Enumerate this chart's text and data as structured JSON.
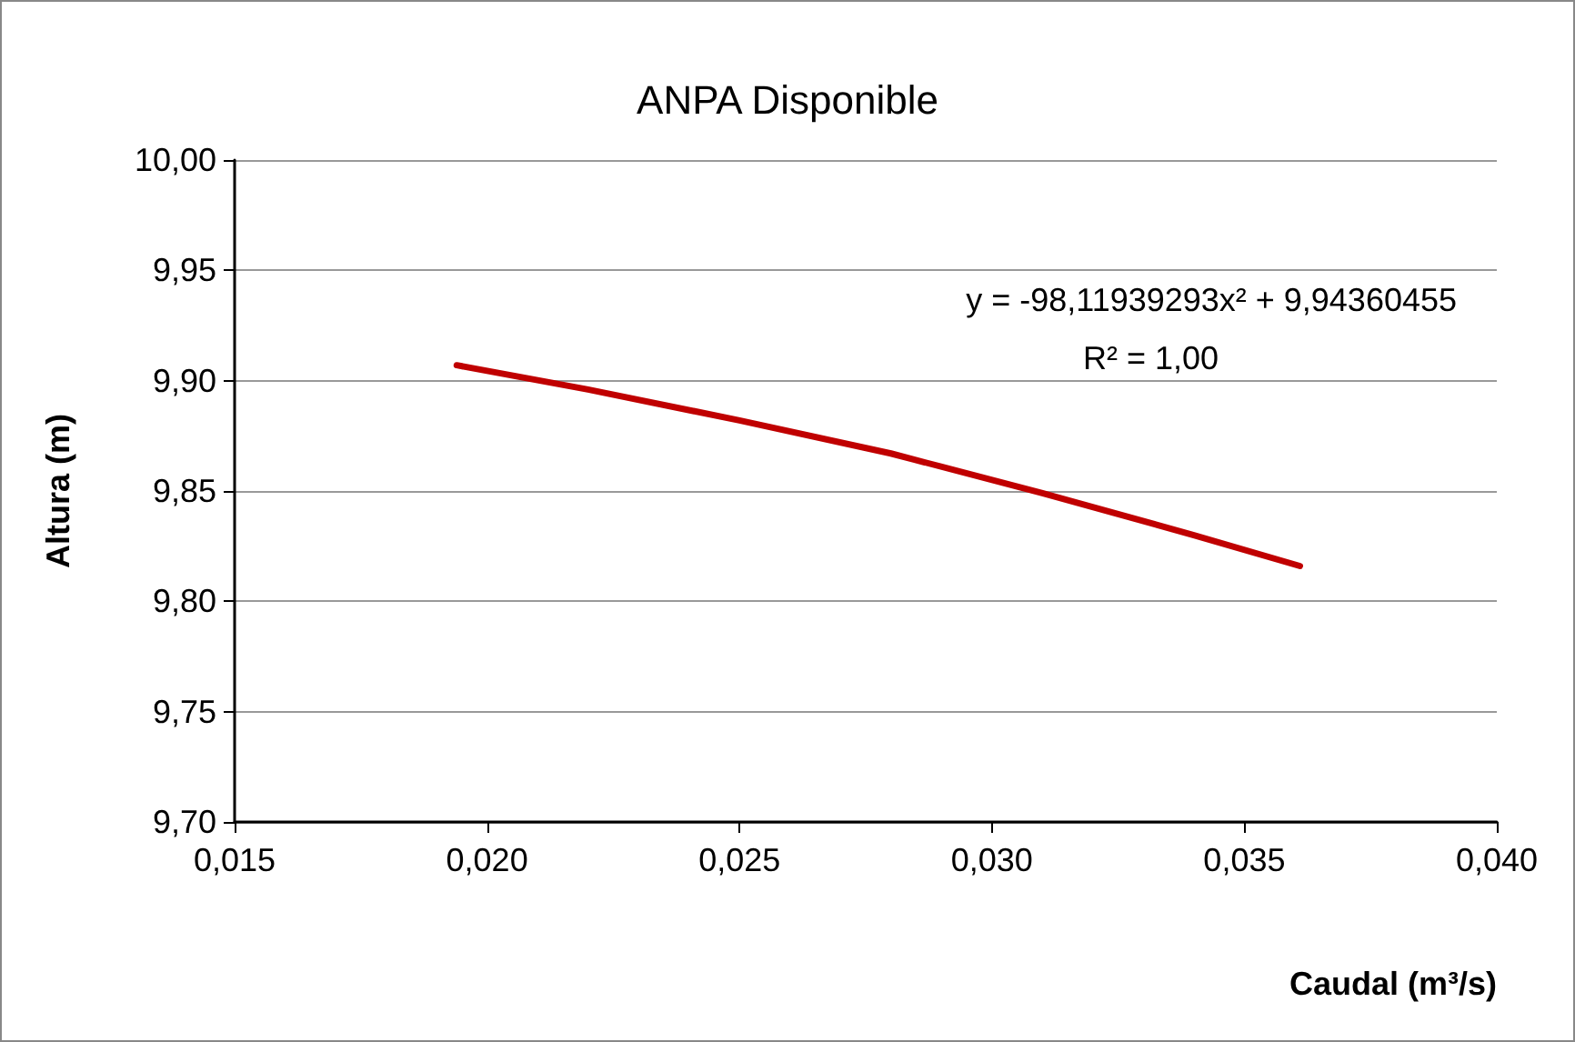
{
  "chart_data": {
    "type": "line",
    "title": "ANPA Disponible",
    "xlabel": "Caudal (m³/s)",
    "ylabel": "Altura (m)",
    "annotations": [
      "y = -98,11939293x² + 9,94360455",
      "R² = 1,00"
    ],
    "series": [
      {
        "color": "#c00000",
        "x": [
          0.0194,
          0.022,
          0.025,
          0.028,
          0.031,
          0.034,
          0.0361
        ],
        "values": [
          9.907,
          9.896,
          9.882,
          9.867,
          9.849,
          9.83,
          9.816
        ]
      }
    ],
    "xlim": [
      0.015,
      0.04
    ],
    "xticks": [
      {
        "value": 0.015,
        "label": "0,015"
      },
      {
        "value": 0.02,
        "label": "0,020"
      },
      {
        "value": 0.025,
        "label": "0,025"
      },
      {
        "value": 0.03,
        "label": "0,030"
      },
      {
        "value": 0.035,
        "label": "0,035"
      },
      {
        "value": 0.04,
        "label": "0,040"
      }
    ],
    "ylim": [
      9.7,
      10.0
    ],
    "yticks": [
      {
        "value": 9.7,
        "label": "9,70"
      },
      {
        "value": 9.75,
        "label": "9,75"
      },
      {
        "value": 9.8,
        "label": "9,80"
      },
      {
        "value": 9.85,
        "label": "9,85"
      },
      {
        "value": 9.9,
        "label": "9,90"
      },
      {
        "value": 9.95,
        "label": "9,95"
      },
      {
        "value": 10.0,
        "label": "10,00"
      }
    ],
    "grid": "y",
    "marker": "none",
    "line_style": "solid"
  }
}
